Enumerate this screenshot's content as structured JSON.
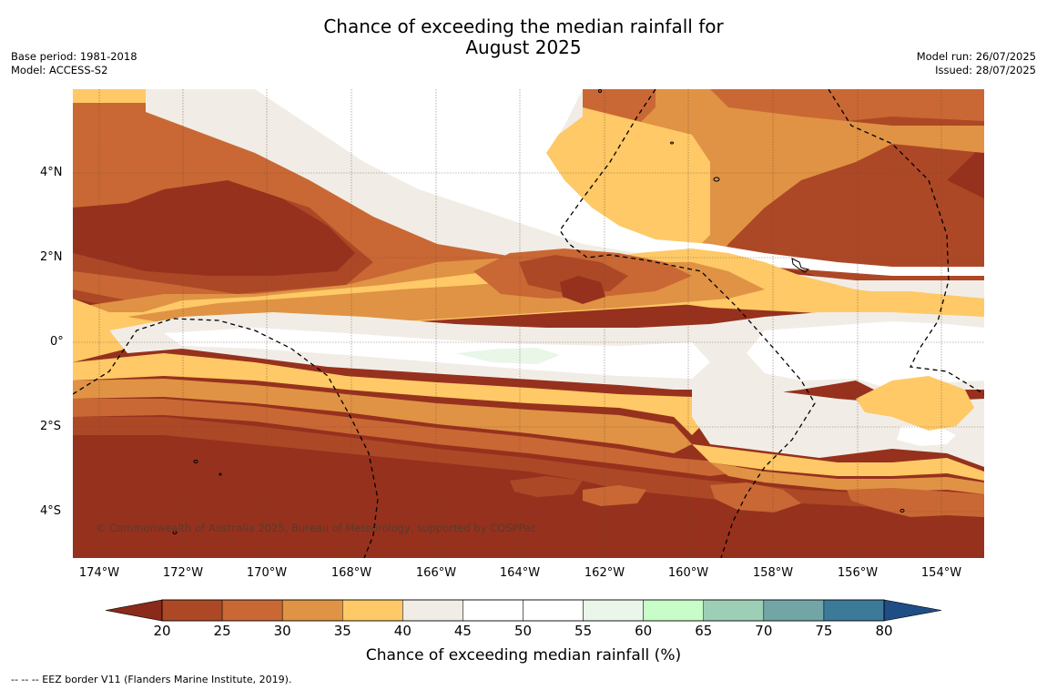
{
  "title": {
    "line1": "Chance of exceeding the median rainfall for",
    "line2": "August 2025"
  },
  "meta_left": {
    "base_period": "Base period: 1981-2018",
    "model": "Model: ACCESS-S2"
  },
  "meta_right": {
    "model_run": "Model run: 26/07/2025",
    "issued": "Issued: 28/07/2025"
  },
  "map": {
    "copyright": "© Commonwealth of Australia 2025, Bureau of Meteorology, supported by COSPPac",
    "lat_labels": [
      "4°N",
      "2°N",
      "0°",
      "2°S",
      "4°S"
    ],
    "lon_labels": [
      "174°W",
      "172°W",
      "170°W",
      "168°W",
      "166°W",
      "164°W",
      "162°W",
      "160°W",
      "158°W",
      "156°W",
      "154°W"
    ],
    "colors": {
      "below20": "#8a2a1a",
      "20-25": "#96311e",
      "25-30": "#ad4826",
      "30-35": "#c96834",
      "35-40": "#e09344",
      "40-45": "#fec966",
      "45-50": "#f1ede6",
      "50-55": "#ffffff",
      "60-65": "#e8f7e8"
    }
  },
  "colorbar": {
    "ticks": [
      "20",
      "25",
      "30",
      "35",
      "40",
      "45",
      "50",
      "55",
      "60",
      "65",
      "70",
      "75",
      "80"
    ],
    "colors": [
      "#ad4826",
      "#c96834",
      "#e09344",
      "#fec966",
      "#f1ede6",
      "#ffffff",
      "#ffffff",
      "#eaf6ea",
      "#c8fcc8",
      "#9dceb6",
      "#72a6a6",
      "#3c7a9a"
    ],
    "low_extend_color": "#8a2a1a",
    "high_extend_color": "#1f4e86",
    "label": "Chance of exceeding median rainfall (%)"
  },
  "footnote": "--  --  -- EEZ border V11 (Flanders Marine Institute, 2019)."
}
